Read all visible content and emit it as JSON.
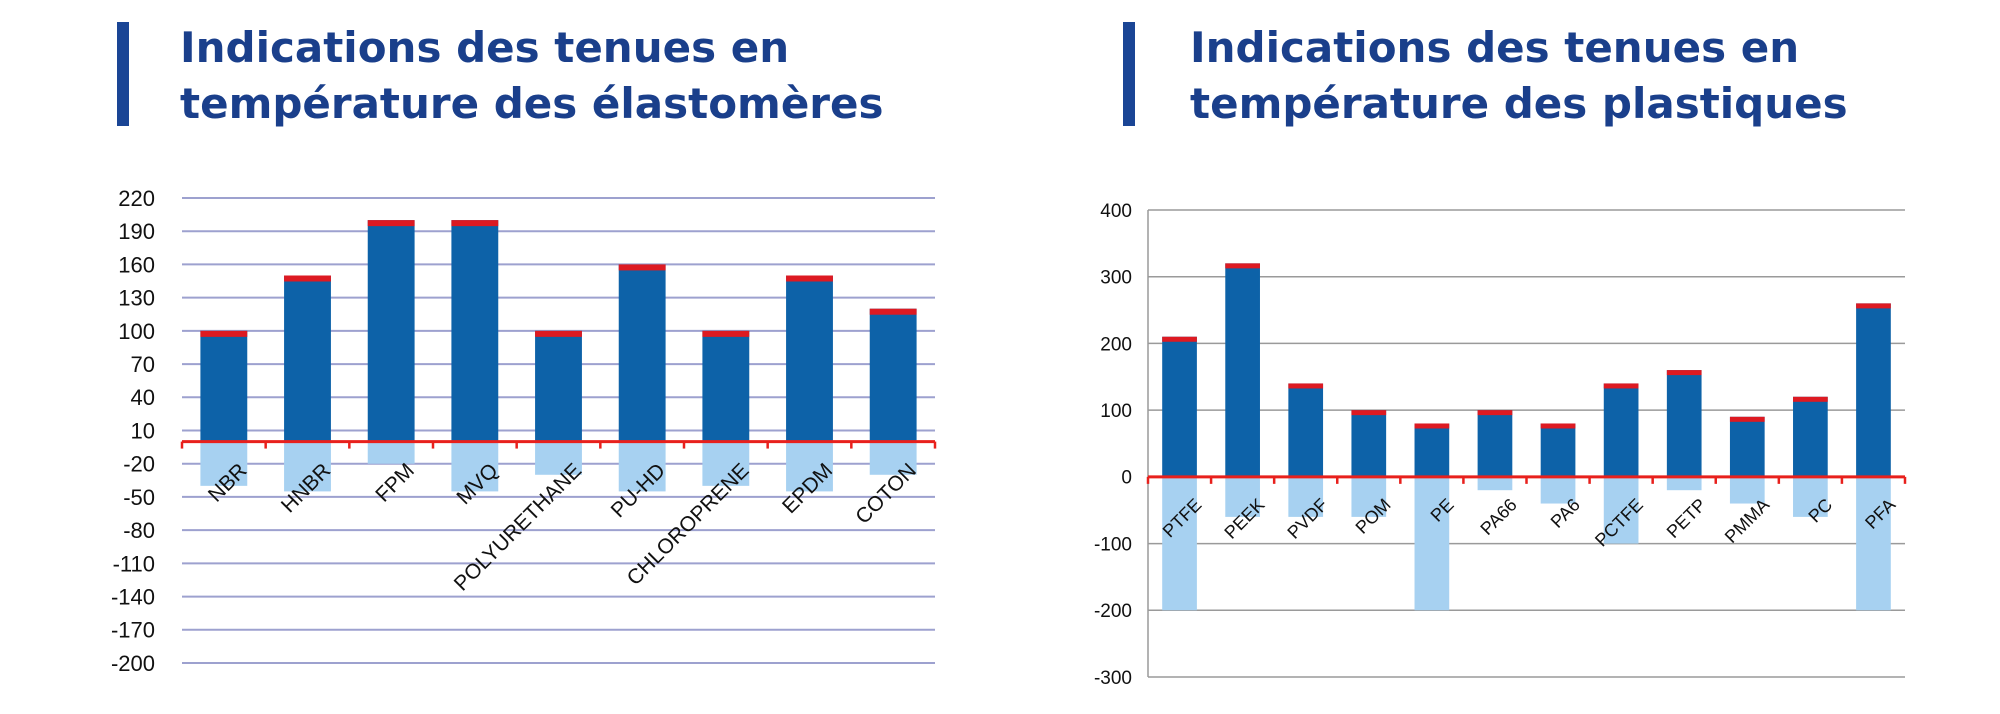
{
  "colors": {
    "title": "#1a3f8b",
    "accent_bar": "#1a4595",
    "bar_high": "#0d62a8",
    "bar_cap": "#dd1a22",
    "bar_low": "#a7d1f1",
    "zero_line": "#e8201c",
    "grid_left": "#9da1cf",
    "grid_right": "#9a9a9a",
    "text": "#111111"
  },
  "panels": {
    "left": {
      "title_line1": "Indications des tenues en",
      "title_line2": "température des élastomères"
    },
    "right": {
      "title_line1": "Indications des tenues en",
      "title_line2": "température des plastiques"
    }
  },
  "chart_data": [
    {
      "type": "bar",
      "title": "Indications des tenues en température des élastomères",
      "xlabel": "",
      "ylabel": "",
      "categories": [
        "NBR",
        "HNBR",
        "FPM",
        "MVQ",
        "POLYURETHANE",
        "PU-HD",
        "CHLOROPRENE",
        "EPDM",
        "COTON"
      ],
      "series": [
        {
          "values": [
            100,
            150,
            200,
            200,
            100,
            160,
            100,
            150,
            120
          ]
        },
        {
          "values": [
            -40,
            -45,
            -20,
            -45,
            -30,
            -45,
            -40,
            -45,
            -30
          ]
        }
      ],
      "yticks": [
        220,
        190,
        160,
        130,
        100,
        70,
        40,
        10,
        -20,
        -50,
        -80,
        -110,
        -140,
        -170,
        -200
      ],
      "ylim": [
        -200,
        220
      ],
      "grid": true,
      "legend": "none"
    },
    {
      "type": "bar",
      "title": "Indications des tenues en température des plastiques",
      "xlabel": "",
      "ylabel": "",
      "categories": [
        "PTFE",
        "PEEK",
        "PVDF",
        "POM",
        "PE",
        "PA66",
        "PA6",
        "PCTFE",
        "PETP",
        "PMMA",
        "PC",
        "PFA"
      ],
      "series": [
        {
          "values": [
            210,
            320,
            140,
            100,
            80,
            100,
            80,
            140,
            160,
            90,
            120,
            260
          ]
        },
        {
          "values": [
            -200,
            -60,
            -60,
            -60,
            -200,
            -20,
            -40,
            -100,
            -20,
            -40,
            -60,
            -200
          ]
        }
      ],
      "yticks": [
        400,
        300,
        200,
        100,
        0,
        -100,
        -200,
        -300
      ],
      "ylim": [
        -300,
        400
      ],
      "grid": true,
      "legend": "none"
    }
  ]
}
